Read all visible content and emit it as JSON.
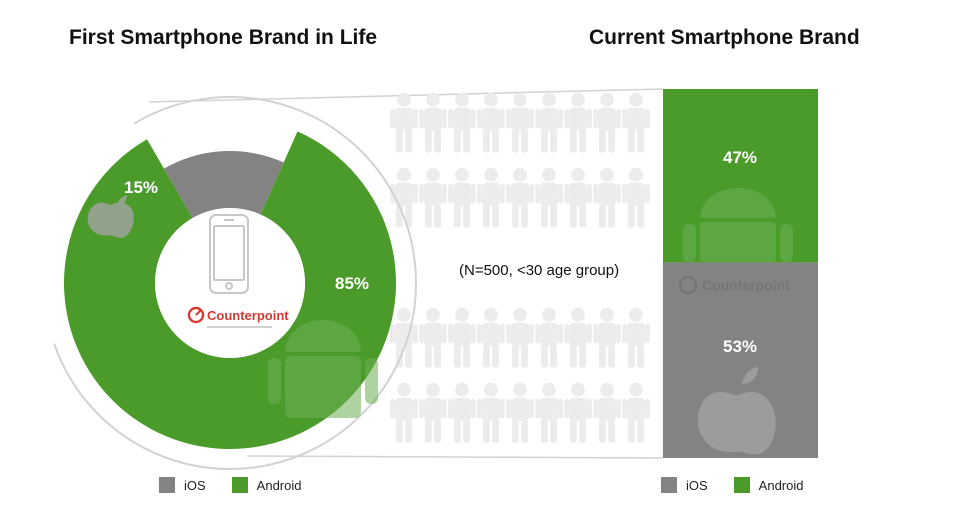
{
  "colors": {
    "ios": "#838383",
    "android": "#4b9b2a",
    "outline": "#d2d2d2",
    "people": "#ececec"
  },
  "note": "(N=500, <30 age group)",
  "logo_text": "Counterpoint",
  "chart_data": [
    {
      "type": "pie",
      "title": "First Smartphone Brand in Life",
      "labels": [
        "iOS",
        "Android"
      ],
      "values": [
        15,
        85
      ],
      "value_labels": [
        "15%",
        "85%"
      ],
      "legend": [
        "iOS",
        "Android"
      ],
      "legend_position": "bottom"
    },
    {
      "type": "bar",
      "stacked": true,
      "title": "Current Smartphone Brand",
      "labels": [
        "Android",
        "iOS"
      ],
      "values": [
        47,
        53
      ],
      "value_labels": [
        "47%",
        "53%"
      ],
      "legend": [
        "iOS",
        "Android"
      ],
      "legend_position": "bottom"
    }
  ]
}
